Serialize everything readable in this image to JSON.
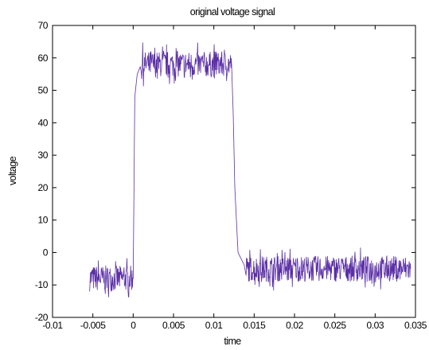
{
  "chart_data": {
    "type": "line",
    "title": "original voltage signal",
    "xlabel": "time",
    "ylabel": "voltage",
    "xlim": [
      -0.01,
      0.035
    ],
    "ylim": [
      -20,
      70
    ],
    "x_ticks": [
      -0.01,
      -0.005,
      0,
      0.005,
      0.01,
      0.015,
      0.02,
      0.025,
      0.03,
      0.035
    ],
    "x_tick_labels": [
      "-0.01",
      "-0.005",
      "0",
      "0.005",
      "0.01",
      "0.015",
      "0.02",
      "0.025",
      "0.03",
      "0.035"
    ],
    "y_ticks": [
      -20,
      -10,
      0,
      10,
      20,
      30,
      40,
      50,
      60,
      70
    ],
    "y_tick_labels": [
      "-20",
      "-10",
      "0",
      "10",
      "20",
      "30",
      "40",
      "50",
      "60",
      "70"
    ],
    "grid": false,
    "line_color": "#5b2fa6",
    "series": [
      {
        "x": [
          -0.0054,
          -0.0045,
          -0.0035,
          -0.0025,
          -0.0015,
          -0.0005,
          0.0,
          0.0002,
          0.0005,
          0.001,
          0.002,
          0.004,
          0.006,
          0.008,
          0.01,
          0.0118,
          0.0122,
          0.0124,
          0.0126,
          0.0128,
          0.013,
          0.014,
          0.016,
          0.018,
          0.02,
          0.022,
          0.024,
          0.026,
          0.028,
          0.03,
          0.032,
          0.034,
          0.0344
        ],
        "y": [
          -8,
          -8,
          -8,
          -8,
          -8,
          -8,
          -8,
          48,
          55,
          58,
          58,
          58,
          58,
          58,
          58,
          58,
          58,
          43,
          20,
          10,
          0,
          -5,
          -5,
          -5,
          -5,
          -5,
          -5,
          -5,
          -5,
          -5,
          -5,
          -5,
          -5
        ],
        "noise_amplitude": 4
      }
    ]
  }
}
